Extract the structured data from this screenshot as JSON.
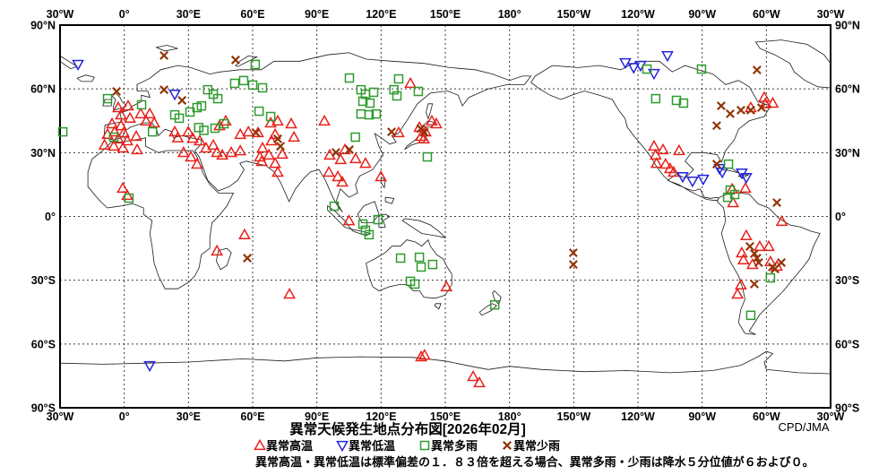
{
  "map": {
    "title": "異常天候発生地点分布図[2026年02月]",
    "credit": "CPD/JMA",
    "note": "異常高温・異常低温は標準偏差の１．８３倍を超える場合、異常多雨・少雨は降水５分位値が６および０。",
    "legend": [
      {
        "symbol": "triangle-up-icon",
        "color": "#e8211a",
        "label": "異常高温"
      },
      {
        "symbol": "triangle-down-icon",
        "color": "#2424dc",
        "label": "異常低温"
      },
      {
        "symbol": "square-icon",
        "color": "#2e9b2e",
        "label": "異常多雨"
      },
      {
        "symbol": "x-icon",
        "color": "#933609",
        "label": "異常少雨"
      }
    ],
    "axis": {
      "lon_labels": [
        "30°W",
        "0°",
        "30°E",
        "60°E",
        "90°E",
        "120°E",
        "150°E",
        "180°",
        "150°W",
        "120°W",
        "90°W",
        "60°W",
        "30°W"
      ],
      "lat_labels": [
        "90°N",
        "60°N",
        "30°N",
        "0°",
        "30°S",
        "60°S",
        "90°S"
      ]
    }
  },
  "chart_data": {
    "type": "scatter",
    "projection": "equirectangular",
    "lon_range": [
      -30,
      330
    ],
    "lat_range": [
      -90,
      90
    ],
    "grid_interval_deg": 30,
    "grid": "dashed",
    "series": [
      {
        "name": "異常高温",
        "marker": "triangle-up",
        "color": "#e8211a",
        "points": [
          [
            -2.8,
            51.2
          ],
          [
            1.8,
            52
          ],
          [
            -1.5,
            47.8
          ],
          [
            2.7,
            46.2
          ],
          [
            7.7,
            48.3
          ],
          [
            11.9,
            48.3
          ],
          [
            10.2,
            44.9
          ],
          [
            14,
            44
          ],
          [
            -5.7,
            43.6
          ],
          [
            -1.5,
            42.7
          ],
          [
            -4.5,
            39.8
          ],
          [
            -0.2,
            39.4
          ],
          [
            -7.8,
            38.6
          ],
          [
            -2.8,
            36.5
          ],
          [
            1.4,
            35.6
          ],
          [
            5.6,
            37.7
          ],
          [
            -9.2,
            33.6
          ],
          [
            -4.9,
            33.1
          ],
          [
            -0.6,
            32.2
          ],
          [
            6,
            31.4
          ],
          [
            23.6,
            39.8
          ],
          [
            29.9,
            39.8
          ],
          [
            25,
            37
          ],
          [
            35.3,
            35.6
          ],
          [
            32,
            36.8
          ],
          [
            38.2,
            32.2
          ],
          [
            41.6,
            33.5
          ],
          [
            43.3,
            30.1
          ],
          [
            47.4,
            44.9
          ],
          [
            44.5,
            42.7
          ],
          [
            27.7,
            30.1
          ],
          [
            31.1,
            28
          ],
          [
            34,
            24.6
          ],
          [
            45.8,
            28.9
          ],
          [
            50,
            30.1
          ],
          [
            54.2,
            30.9
          ],
          [
            54.2,
            38.6
          ],
          [
            58,
            39.8
          ],
          [
            62.5,
            39.4
          ],
          [
            63.4,
            28
          ],
          [
            68.4,
            44
          ],
          [
            71.7,
            44.9
          ],
          [
            70.5,
            38.6
          ],
          [
            78,
            43.6
          ],
          [
            79.3,
            37.3
          ],
          [
            68.8,
            35.6
          ],
          [
            64.6,
            32.2
          ],
          [
            67.6,
            28.9
          ],
          [
            64.2,
            25.9
          ],
          [
            70.5,
            25
          ],
          [
            73.8,
            29.3
          ],
          [
            71.7,
            20.8
          ],
          [
            93.5,
            44.9
          ],
          [
            96,
            28.9
          ],
          [
            101.1,
            26.8
          ],
          [
            103.1,
            31.4
          ],
          [
            108.1,
            27.2
          ],
          [
            112.7,
            25
          ],
          [
            95.6,
            20.8
          ],
          [
            99.8,
            18.7
          ],
          [
            101.9,
            16.2
          ],
          [
            119.9,
            18.7
          ],
          [
            105,
            -2
          ],
          [
            133.7,
            62.6
          ],
          [
            128.2,
            39.4
          ],
          [
            143.7,
            44.9
          ],
          [
            145.8,
            43.6
          ],
          [
            137.9,
            41.9
          ],
          [
            140.8,
            39.8
          ],
          [
            138.7,
            37.7
          ],
          [
            140,
            36.5
          ],
          [
            -0.7,
            13.3
          ],
          [
            1.4,
            9.9
          ],
          [
            56.2,
            -8.6
          ],
          [
            43.3,
            -16.2
          ],
          [
            77.2,
            -36.5
          ],
          [
            150.5,
            -33.1
          ],
          [
            138.7,
            -66
          ],
          [
            140.3,
            -65.2
          ],
          [
            163,
            -75.3
          ],
          [
            165.9,
            -78.2
          ],
          [
            292.7,
            51.2
          ],
          [
            299,
            56
          ],
          [
            299.5,
            53
          ],
          [
            303,
            53.3
          ],
          [
            247.5,
            33.1
          ],
          [
            251.7,
            31.4
          ],
          [
            248.3,
            28.9
          ],
          [
            259.2,
            31
          ],
          [
            248.7,
            25
          ],
          [
            252.9,
            24.6
          ],
          [
            255,
            22.5
          ],
          [
            256.7,
            20.8
          ],
          [
            290.2,
            13.3
          ],
          [
            284,
            12.9
          ],
          [
            284.4,
            6.5
          ],
          [
            307.2,
            -2.3
          ],
          [
            290.6,
            -9
          ],
          [
            288.5,
            -17.1
          ],
          [
            289.3,
            -20.4
          ],
          [
            293.5,
            -22.6
          ],
          [
            296.9,
            -14.1
          ],
          [
            301.1,
            -14.1
          ],
          [
            301.9,
            -21.3
          ],
          [
            304.9,
            -23.4
          ],
          [
            288.1,
            -32.2
          ],
          [
            286.5,
            -36.5
          ]
        ]
      },
      {
        "name": "異常低温",
        "marker": "triangle-down",
        "color": "#2424dc",
        "points": [
          [
            -21.6,
            71.5
          ],
          [
            23.6,
            57.5
          ],
          [
            11.9,
            -70.2
          ],
          [
            234.1,
            72.3
          ],
          [
            238,
            70
          ],
          [
            241.2,
            71
          ],
          [
            247.5,
            67.2
          ],
          [
            253.8,
            75.6
          ],
          [
            260.9,
            18.7
          ],
          [
            265.5,
            16.6
          ],
          [
            270.5,
            17.5
          ],
          [
            278.1,
            22.5
          ],
          [
            279.4,
            20.8
          ],
          [
            288.5,
            20.4
          ],
          [
            290.6,
            18.3
          ]
        ]
      },
      {
        "name": "異常多雨",
        "marker": "square",
        "color": "#2e9b2e",
        "points": [
          [
            -28.7,
            39.8
          ],
          [
            -7.8,
            55.4
          ],
          [
            -4.9,
            37.3
          ],
          [
            8.1,
            52.5
          ],
          [
            13.2,
            39.8
          ],
          [
            23.6,
            47.8
          ],
          [
            25.7,
            46.2
          ],
          [
            30.7,
            49.1
          ],
          [
            34,
            51.2
          ],
          [
            36.1,
            52
          ],
          [
            34.8,
            41.8
          ],
          [
            37.2,
            40.5
          ],
          [
            42.4,
            41.5
          ],
          [
            46.6,
            43.6
          ],
          [
            39,
            59.6
          ],
          [
            41.6,
            57.5
          ],
          [
            43.7,
            55.4
          ],
          [
            51.6,
            62.6
          ],
          [
            55.8,
            63.9
          ],
          [
            60,
            61.8
          ],
          [
            64.6,
            60.5
          ],
          [
            61.2,
            71.5
          ],
          [
            63,
            49.5
          ],
          [
            68.4,
            47
          ],
          [
            105.2,
            65.1
          ],
          [
            110.6,
            59.6
          ],
          [
            112.7,
            57.5
          ],
          [
            116.5,
            58.4
          ],
          [
            111.5,
            54.2
          ],
          [
            114.8,
            53.3
          ],
          [
            110.6,
            48.2
          ],
          [
            114.4,
            47.8
          ],
          [
            117.7,
            48.2
          ],
          [
            127.4,
            56.7
          ],
          [
            128.2,
            64.7
          ],
          [
            137.4,
            58.8
          ],
          [
            126,
            59.6
          ],
          [
            108,
            37.3
          ],
          [
            141.6,
            28
          ],
          [
            98.1,
            4.8
          ],
          [
            111.5,
            -3.6
          ],
          [
            112.7,
            -6.5
          ],
          [
            114.4,
            -8.6
          ],
          [
            118.6,
            -1.5
          ],
          [
            129.1,
            -19.6
          ],
          [
            137.9,
            -19.2
          ],
          [
            144.1,
            -22.6
          ],
          [
            138.7,
            -23.8
          ],
          [
            133.7,
            -30.5
          ],
          [
            135.8,
            -31.8
          ],
          [
            173.1,
            -41.6
          ],
          [
            244.2,
            69.3
          ],
          [
            269.7,
            69.3
          ],
          [
            248.3,
            55.4
          ],
          [
            258,
            54.6
          ],
          [
            261.3,
            53.3
          ],
          [
            282.3,
            24.6
          ],
          [
            283.1,
            12.4
          ],
          [
            285.2,
            10.3
          ],
          [
            281.9,
            9
          ],
          [
            301.9,
            -28.9
          ],
          [
            292.7,
            -46.5
          ],
          [
            2.2,
            8.6
          ]
        ]
      },
      {
        "name": "異常少雨",
        "marker": "x",
        "color": "#933609",
        "points": [
          [
            -3.6,
            58.8
          ],
          [
            18.6,
            59.6
          ],
          [
            27,
            54.6
          ],
          [
            18.6,
            75.7
          ],
          [
            52,
            73.6
          ],
          [
            61.5,
            39.4
          ],
          [
            71.7,
            36.5
          ],
          [
            73,
            33
          ],
          [
            98.9,
            30.1
          ],
          [
            105.2,
            31.4
          ],
          [
            124.9,
            39.8
          ],
          [
            138.5,
            41.3
          ],
          [
            140.2,
            39.6
          ],
          [
            57.5,
            -19.6
          ],
          [
            209.8,
            -17.1
          ],
          [
            209.8,
            -22.6
          ],
          [
            295.6,
            68.9
          ],
          [
            278.9,
            52
          ],
          [
            283.1,
            48.3
          ],
          [
            288.1,
            50
          ],
          [
            292.7,
            50
          ],
          [
            297.7,
            51.2
          ],
          [
            276.8,
            42.7
          ],
          [
            276.8,
            24.6
          ],
          [
            304.9,
            6.5
          ],
          [
            292.3,
            -14.1
          ],
          [
            294.4,
            -17.5
          ],
          [
            295.6,
            -19.6
          ],
          [
            296.4,
            -21.7
          ],
          [
            302.8,
            -23.8
          ],
          [
            307,
            -21.7
          ],
          [
            304,
            -24.7
          ],
          [
            294.4,
            -31.8
          ]
        ]
      }
    ]
  }
}
